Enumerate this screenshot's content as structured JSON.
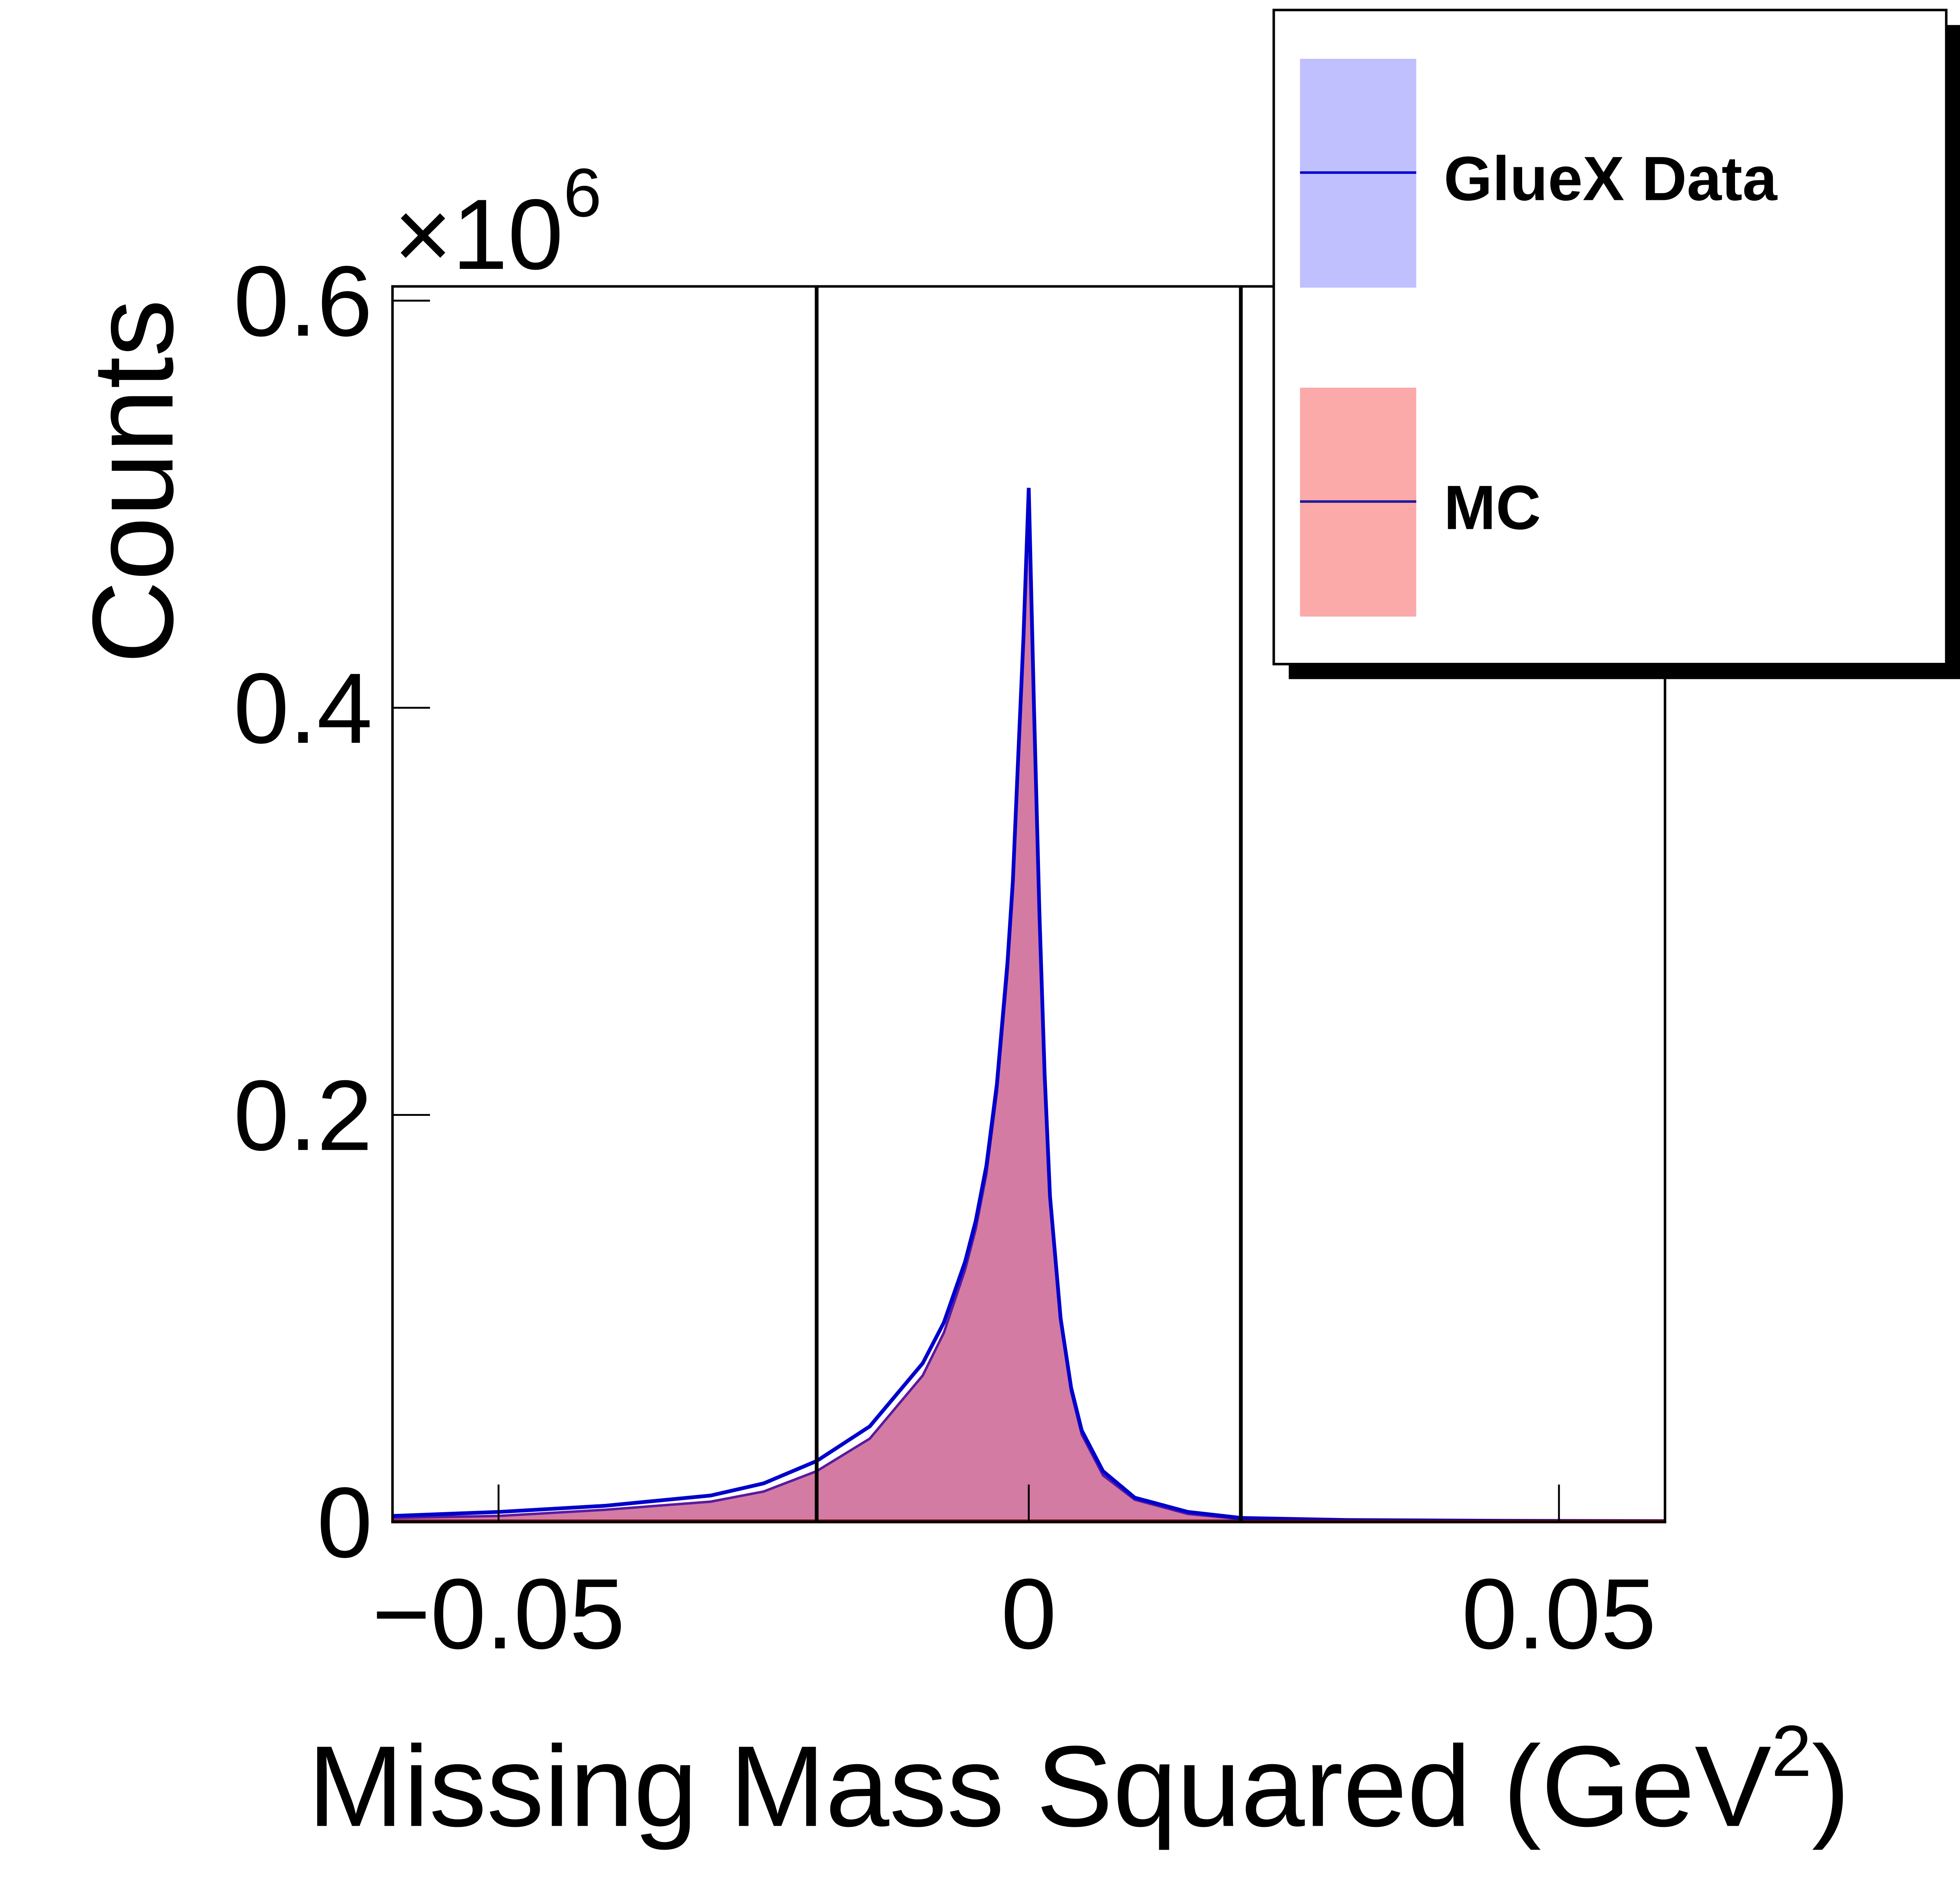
{
  "chart_data": {
    "type": "line",
    "title": "",
    "xlabel": "Missing Mass Squared (GeV",
    "xlabel_sup": "2",
    "xlabel_end": ")",
    "ylabel": "Counts",
    "y_multiplier_prefix": "×10",
    "y_multiplier_exp": "6",
    "xlim": [
      -0.06,
      0.06
    ],
    "ylim": [
      0,
      0.607
    ],
    "x_ticks": [
      -0.05,
      0,
      0.05
    ],
    "x_tick_labels": [
      "−0.05",
      "0",
      "0.05"
    ],
    "y_ticks": [
      0,
      0.2,
      0.4,
      0.6
    ],
    "y_tick_labels": [
      "0",
      "0.2",
      "0.4",
      "0.6"
    ],
    "cut_lines": [
      -0.02,
      0.02
    ],
    "legend": {
      "placement": "top-right",
      "entries": [
        {
          "label": "GlueX Data",
          "fill": "#c0c0ff",
          "line": "#0000cc"
        },
        {
          "label": "MC",
          "fill": "#fca9a9",
          "line": "#1a1a99"
        }
      ]
    },
    "series": [
      {
        "name": "GlueX Data",
        "color": "#0000cc",
        "x": [
          -0.06,
          -0.05,
          -0.04,
          -0.03,
          -0.025,
          -0.02,
          -0.015,
          -0.01,
          -0.008,
          -0.006,
          -0.005,
          -0.004,
          -0.003,
          -0.002,
          -0.0015,
          -0.001,
          -0.0005,
          0,
          0.0005,
          0.001,
          0.0015,
          0.002,
          0.003,
          0.004,
          0.005,
          0.007,
          0.01,
          0.015,
          0.02,
          0.03,
          0.045,
          0.06
        ],
        "y": [
          0.003,
          0.005,
          0.008,
          0.013,
          0.019,
          0.03,
          0.047,
          0.078,
          0.098,
          0.128,
          0.148,
          0.175,
          0.215,
          0.275,
          0.315,
          0.375,
          0.435,
          0.508,
          0.4,
          0.3,
          0.22,
          0.16,
          0.1,
          0.066,
          0.045,
          0.025,
          0.012,
          0.005,
          0.002,
          0.001,
          0.0006,
          0.0004
        ]
      },
      {
        "name": "MC",
        "color": "#d47ba4",
        "x": [
          -0.06,
          -0.05,
          -0.04,
          -0.03,
          -0.025,
          -0.02,
          -0.015,
          -0.01,
          -0.008,
          -0.006,
          -0.005,
          -0.004,
          -0.003,
          -0.002,
          -0.0015,
          -0.001,
          -0.0005,
          0,
          0.0005,
          0.001,
          0.0015,
          0.002,
          0.003,
          0.004,
          0.005,
          0.007,
          0.01,
          0.015,
          0.02,
          0.03,
          0.045,
          0.06
        ],
        "y": [
          0.002,
          0.003,
          0.006,
          0.01,
          0.015,
          0.025,
          0.041,
          0.072,
          0.093,
          0.124,
          0.144,
          0.171,
          0.211,
          0.27,
          0.31,
          0.37,
          0.43,
          0.5,
          0.395,
          0.295,
          0.215,
          0.157,
          0.098,
          0.064,
          0.043,
          0.023,
          0.011,
          0.004,
          0.0015,
          0.0005,
          0.0002,
          0.0001
        ]
      }
    ]
  }
}
